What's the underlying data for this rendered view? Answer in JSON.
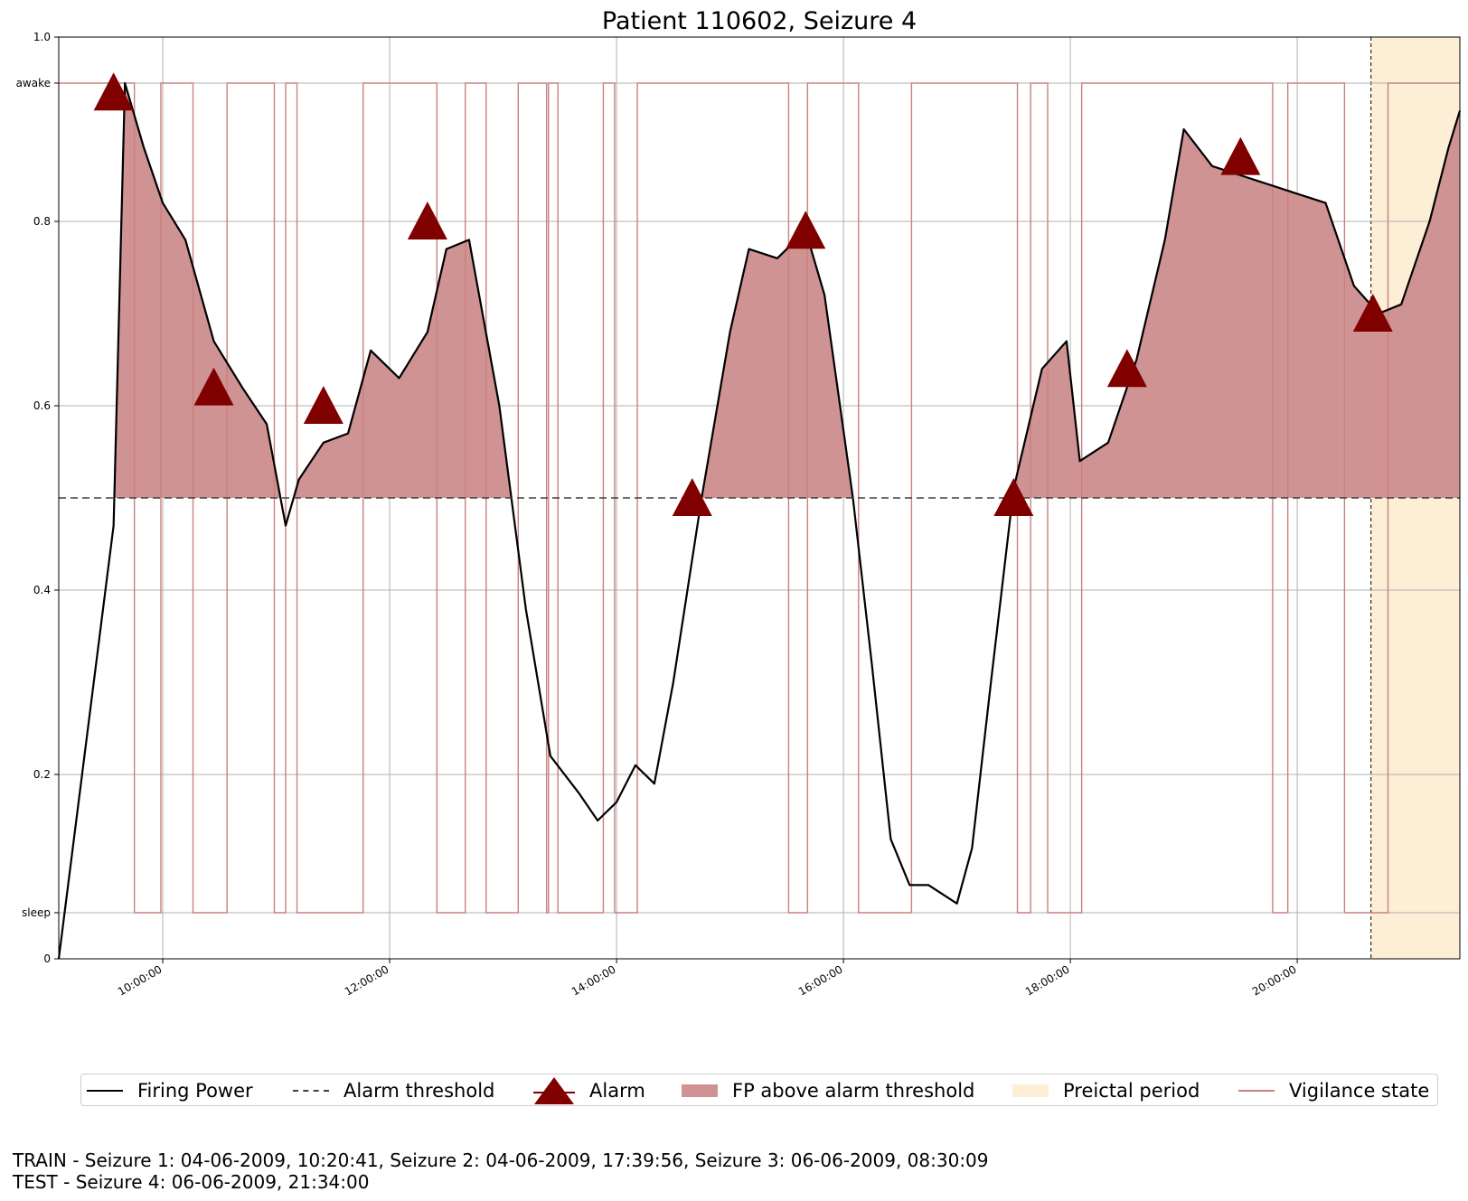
{
  "chart_data": {
    "type": "line",
    "title": "Patient 110602, Seizure 4",
    "xlabel": "",
    "ylabel": "",
    "x_range": [
      "09:05:00",
      "21:26:00"
    ],
    "x_tick_labels": [
      "10:00:00",
      "12:00:00",
      "14:00:00",
      "16:00:00",
      "18:00:00",
      "20:00:00"
    ],
    "ylim": [
      0,
      1
    ],
    "y_tick_labels": [
      {
        "value": 0,
        "label": "0"
      },
      {
        "value": 0.05,
        "label": "sleep"
      },
      {
        "value": 0.2,
        "label": "0.2"
      },
      {
        "value": 0.4,
        "label": "0.4"
      },
      {
        "value": 0.6,
        "label": "0.6"
      },
      {
        "value": 0.8,
        "label": "0.8"
      },
      {
        "value": 0.95,
        "label": "awake"
      },
      {
        "value": 1.0,
        "label": "1.0"
      }
    ],
    "grid": true,
    "alarm_threshold": 0.5,
    "firing_power": {
      "x": [
        "09:05",
        "09:34",
        "09:40",
        "09:50",
        "10:00",
        "10:12",
        "10:27",
        "10:42",
        "10:55",
        "11:05",
        "11:12",
        "11:25",
        "11:38",
        "11:50",
        "12:05",
        "12:20",
        "12:30",
        "12:42",
        "12:58",
        "13:12",
        "13:25",
        "13:40",
        "13:50",
        "14:00",
        "14:10",
        "14:20",
        "14:30",
        "14:45",
        "15:00",
        "15:10",
        "15:25",
        "15:40",
        "15:50",
        "16:05",
        "16:15",
        "16:25",
        "16:35",
        "16:45",
        "17:00",
        "17:08",
        "17:18",
        "17:30",
        "17:45",
        "17:58",
        "18:05",
        "18:20",
        "18:35",
        "18:50",
        "19:00",
        "19:15",
        "19:30",
        "19:45",
        "20:00",
        "20:15",
        "20:30",
        "20:43",
        "20:55",
        "21:10",
        "21:20",
        "21:26"
      ],
      "y": [
        0.0,
        0.47,
        0.95,
        0.88,
        0.82,
        0.78,
        0.67,
        0.62,
        0.58,
        0.47,
        0.52,
        0.56,
        0.57,
        0.66,
        0.63,
        0.68,
        0.77,
        0.78,
        0.6,
        0.38,
        0.22,
        0.18,
        0.15,
        0.17,
        0.21,
        0.19,
        0.3,
        0.5,
        0.68,
        0.77,
        0.76,
        0.79,
        0.72,
        0.5,
        0.32,
        0.13,
        0.08,
        0.08,
        0.06,
        0.12,
        0.3,
        0.51,
        0.64,
        0.67,
        0.54,
        0.56,
        0.65,
        0.78,
        0.9,
        0.86,
        0.85,
        0.84,
        0.83,
        0.82,
        0.73,
        0.7,
        0.71,
        0.8,
        0.88,
        0.92
      ]
    },
    "alarms": [
      {
        "x": "09:34",
        "y": 0.94
      },
      {
        "x": "10:27",
        "y": 0.62
      },
      {
        "x": "11:25",
        "y": 0.6
      },
      {
        "x": "12:20",
        "y": 0.8
      },
      {
        "x": "14:40",
        "y": 0.5
      },
      {
        "x": "15:40",
        "y": 0.79
      },
      {
        "x": "17:30",
        "y": 0.5
      },
      {
        "x": "18:30",
        "y": 0.64
      },
      {
        "x": "19:30",
        "y": 0.87
      },
      {
        "x": "20:40",
        "y": 0.7
      }
    ],
    "preictal_period": {
      "start": "20:39",
      "end": "21:26"
    },
    "vigilance_state": {
      "sleep_value": 0.05,
      "awake_value": 0.95,
      "sleep_intervals": [
        [
          "09:45",
          "09:59"
        ],
        [
          "10:16",
          "10:34"
        ],
        [
          "10:59",
          "11:05"
        ],
        [
          "11:11",
          "11:46"
        ],
        [
          "12:25",
          "12:40"
        ],
        [
          "12:51",
          "13:08"
        ],
        [
          "13:23",
          "13:24"
        ],
        [
          "13:29",
          "13:53"
        ],
        [
          "13:59",
          "14:11"
        ],
        [
          "15:31",
          "15:41"
        ],
        [
          "16:08",
          "16:36"
        ],
        [
          "17:32",
          "17:39"
        ],
        [
          "17:48",
          "18:06"
        ],
        [
          "19:47",
          "19:55"
        ],
        [
          "20:25",
          "20:48"
        ]
      ]
    },
    "legend": {
      "placement": "bottom",
      "entries": [
        "Firing Power",
        "Alarm threshold",
        "Alarm",
        "FP above alarm threshold",
        "Preictal period",
        "Vigilance state"
      ]
    },
    "colors": {
      "firing_power": "#000000",
      "alarm": "#800000",
      "fill_above_threshold": "#d09393",
      "preictal": "#fdeed6",
      "vigilance": "#c98080",
      "threshold": "#404040",
      "grid": "#b0b0b0"
    }
  },
  "footer": {
    "train_line": "TRAIN - Seizure 1: 04-06-2009, 10:20:41, Seizure 2: 04-06-2009, 17:39:56, Seizure 3: 06-06-2009, 08:30:09",
    "test_line": "TEST - Seizure 4: 06-06-2009, 21:34:00"
  }
}
